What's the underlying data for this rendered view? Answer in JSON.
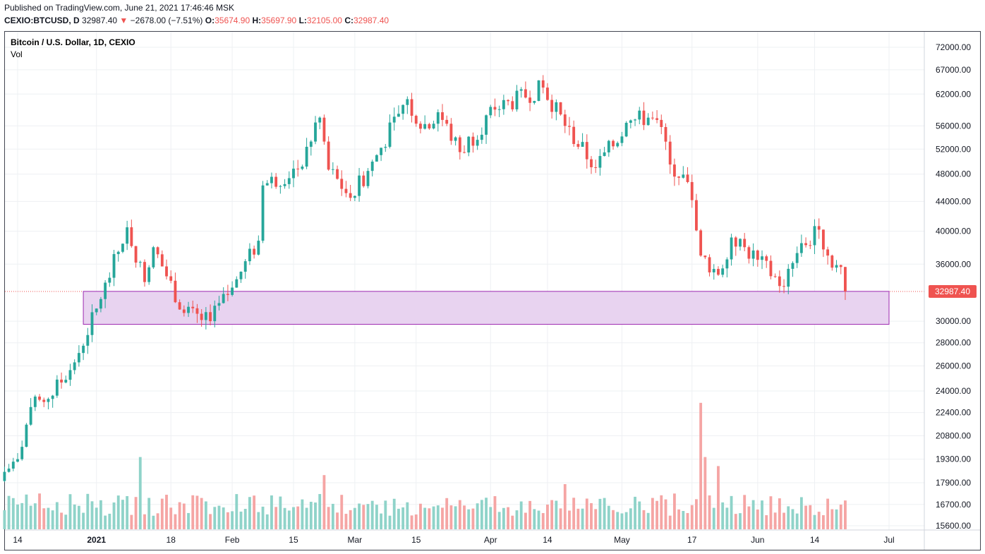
{
  "header": {
    "published": "Published on TradingView.com, June 21, 2021 17:46:46 MSK",
    "symbol": "CEXIO:BTCUSD, D",
    "last": "32987.40",
    "arrow": "▼",
    "change": "−2678.00 (−7.51%)",
    "o_label": "O:",
    "o_value": "35674.90",
    "h_label": "H:",
    "h_value": "35697.90",
    "l_label": "L:",
    "l_value": "32105.00",
    "c_label": "C:",
    "c_value": "32987.40"
  },
  "legend": {
    "title": "Bitcoin / U.S. Dollar, 1D, CEXIO",
    "volume": "Vol"
  },
  "colors": {
    "up": "#26a69a",
    "down": "#ef5350",
    "up_vol": "#8fd3c9",
    "down_vol": "#f5a5a4",
    "zone_fill": "#e8d3f0",
    "zone_border": "#9c27b0",
    "price_line": "#ef5350",
    "grid": "#eef0f3"
  },
  "chart_data": {
    "type": "candlestick",
    "x_ticks": [
      "14",
      "2021",
      "18",
      "Feb",
      "15",
      "Mar",
      "15",
      "Apr",
      "14",
      "May",
      "17",
      "Jun",
      "14",
      "Jul"
    ],
    "y_ticks": [
      "72000.00",
      "67000.00",
      "62000.00",
      "56000.00",
      "52000.00",
      "48000.00",
      "44000.00",
      "40000.00",
      "36000.00",
      "30000.00",
      "28000.00",
      "26000.00",
      "24000.00",
      "22400.00",
      "20800.00",
      "19300.00",
      "17900.00",
      "16700.00",
      "15600.00"
    ],
    "last_price_label": "32987.40",
    "support_zone": {
      "low": 29700,
      "high": 33000,
      "start": "Dec 29 2020",
      "end": "Jul 1 2021"
    },
    "series_anchors": [
      {
        "date": "Dec 10 2020",
        "close": 18300
      },
      {
        "date": "Dec 14 2020",
        "close": 19300
      },
      {
        "date": "Dec 17 2020",
        "close": 22800
      },
      {
        "date": "Dec 21 2020",
        "close": 23400
      },
      {
        "date": "Dec 27 2020",
        "close": 26300
      },
      {
        "date": "Jan 2 2021",
        "close": 32200
      },
      {
        "date": "Jan 8 2021",
        "close": 40500
      },
      {
        "date": "Jan 12 2021",
        "close": 34000
      },
      {
        "date": "Jan 14 2021",
        "close": 38000
      },
      {
        "date": "Jan 21 2021",
        "close": 30800
      },
      {
        "date": "Jan 27 2021",
        "close": 30000
      },
      {
        "date": "Feb 1 2021",
        "close": 33400
      },
      {
        "date": "Feb 7 2021",
        "close": 38800
      },
      {
        "date": "Feb 8 2021",
        "close": 46300
      },
      {
        "date": "Feb 16 2021",
        "close": 48800
      },
      {
        "date": "Feb 21 2021",
        "close": 57500
      },
      {
        "date": "Feb 23 2021",
        "close": 48700
      },
      {
        "date": "Feb 28 2021",
        "close": 44500
      },
      {
        "date": "Mar 4 2021",
        "close": 48500
      },
      {
        "date": "Mar 13 2021",
        "close": 61000
      },
      {
        "date": "Mar 16 2021",
        "close": 55500
      },
      {
        "date": "Mar 20 2021",
        "close": 58500
      },
      {
        "date": "Mar 25 2021",
        "close": 51500
      },
      {
        "date": "Apr 2 2021",
        "close": 59000
      },
      {
        "date": "Apr 13 2021",
        "close": 63300
      },
      {
        "date": "Apr 18 2021",
        "close": 56000
      },
      {
        "date": "Apr 25 2021",
        "close": 49000
      },
      {
        "date": "May 3 2021",
        "close": 57000
      },
      {
        "date": "May 7 2021",
        "close": 57500
      },
      {
        "date": "May 10 2021",
        "close": 55800
      },
      {
        "date": "May 12 2021",
        "close": 49500
      },
      {
        "date": "May 16 2021",
        "close": 46800
      },
      {
        "date": "May 19 2021",
        "close": 37000
      },
      {
        "date": "May 23 2021",
        "close": 34800
      },
      {
        "date": "May 26 2021",
        "close": 39200
      },
      {
        "date": "Jun 1 2021",
        "close": 36500
      },
      {
        "date": "Jun 7 2021",
        "close": 33500
      },
      {
        "date": "Jun 10 2021",
        "close": 37300
      },
      {
        "date": "Jun 15 2021",
        "close": 40200
      },
      {
        "date": "Jun 18 2021",
        "close": 35600
      },
      {
        "date": "Jun 20 2021",
        "close": 35674.9
      },
      {
        "date": "Jun 21 2021",
        "close": 32987.4
      }
    ],
    "last_candle": {
      "date": "Jun 21 2021",
      "open": 35674.9,
      "high": 35697.9,
      "low": 32105.0,
      "close": 32987.4
    }
  }
}
